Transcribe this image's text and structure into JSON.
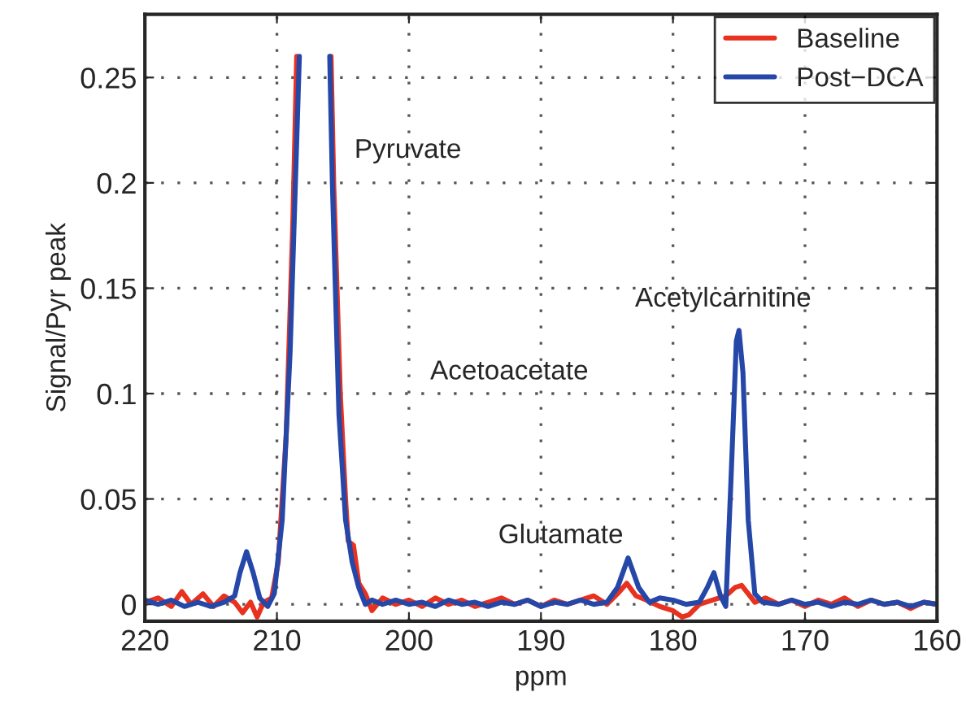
{
  "chart_data": {
    "type": "line",
    "xlabel": "ppm",
    "ylabel": "Signal/Pyr peak",
    "xlim": [
      220,
      160
    ],
    "xticks": [
      220,
      210,
      200,
      190,
      180,
      170,
      160
    ],
    "ylim": [
      -0.008,
      0.28
    ],
    "yticks": [
      0,
      0.05,
      0.1,
      0.15,
      0.2,
      0.25
    ],
    "grid": true,
    "legend": "top right",
    "line_style": "solid",
    "annotations": [
      "Pyruvate",
      "Acetoacetate",
      "Glutamate",
      "Acetylcarnitine"
    ],
    "series": [
      {
        "name": "Baseline",
        "color": "#e8311f",
        "x": [
          220,
          219,
          218,
          217.2,
          216.5,
          215.6,
          214.8,
          214,
          213.2,
          212.6,
          212,
          211.5,
          211,
          210.4,
          209.9,
          209.3,
          208.8,
          208.5,
          207.2,
          205.9,
          205.7,
          205.2,
          204.8,
          204.6,
          204.2,
          203.8,
          203.3,
          202.8,
          202,
          201,
          200,
          199,
          198,
          197,
          196,
          195,
          194,
          193,
          192,
          191,
          190,
          189,
          188,
          187,
          186,
          185,
          184.2,
          183.5,
          182.8,
          182,
          181,
          180,
          179.3,
          178.8,
          178,
          177,
          176,
          175.3,
          174.8,
          174.3,
          173.8,
          173,
          172,
          171,
          170,
          169,
          168,
          167,
          166,
          165,
          164,
          163,
          162,
          161,
          160
        ],
        "values": [
          0.001,
          0.003,
          -0.001,
          0.006,
          0.0,
          0.005,
          -0.001,
          0.004,
          0.001,
          -0.004,
          0.001,
          -0.006,
          0.001,
          0.003,
          0.02,
          0.08,
          0.18,
          0.26,
          null,
          0.26,
          0.2,
          0.1,
          0.05,
          0.03,
          0.028,
          0.01,
          0.005,
          -0.003,
          0.003,
          0.0,
          0.002,
          -0.001,
          0.003,
          0.0,
          0.002,
          -0.001,
          0.001,
          0.003,
          0.0,
          0.002,
          -0.001,
          0.002,
          0.0,
          0.002,
          0.004,
          0.0,
          0.005,
          0.01,
          0.004,
          0.002,
          -0.001,
          -0.003,
          -0.006,
          -0.005,
          0.0,
          0.002,
          0.004,
          0.008,
          0.009,
          0.005,
          0.001,
          0.003,
          0.0,
          0.002,
          -0.001,
          0.002,
          0.0,
          0.003,
          -0.001,
          0.002,
          0.0,
          0.001,
          -0.002,
          0.001,
          0.0
        ]
      },
      {
        "name": "Post−DCA",
        "color": "#2447a8",
        "x": [
          220,
          219,
          218,
          217,
          216,
          215,
          214,
          213.2,
          212.8,
          212.3,
          211.8,
          211.3,
          210.7,
          210.2,
          209.6,
          209,
          208.5,
          208.3,
          207.1,
          206.0,
          205.8,
          205.3,
          204.8,
          204.3,
          203.8,
          203.3,
          202.8,
          202,
          201,
          200,
          199,
          198,
          197,
          196,
          195,
          194,
          193,
          192,
          191,
          190,
          189,
          188,
          187,
          186,
          185,
          184.2,
          183.4,
          182.6,
          181.8,
          181,
          180,
          179,
          178,
          177.4,
          176.9,
          176.4,
          176,
          175.6,
          175.2,
          175.0,
          174.7,
          174.3,
          173.8,
          173.2,
          172,
          171,
          170,
          169,
          168,
          167,
          166,
          165,
          164,
          163,
          162,
          161,
          160
        ],
        "values": [
          0.002,
          0.0,
          0.002,
          -0.001,
          0.001,
          -0.001,
          0.001,
          0.004,
          0.015,
          0.025,
          0.015,
          0.003,
          -0.001,
          0.005,
          0.04,
          0.12,
          0.22,
          0.26,
          null,
          0.26,
          0.2,
          0.09,
          0.04,
          0.02,
          0.008,
          0.0,
          0.002,
          0.0,
          0.002,
          0.0,
          0.001,
          -0.001,
          0.002,
          0.0,
          0.001,
          -0.001,
          0.001,
          0.0,
          0.002,
          -0.001,
          0.001,
          0.0,
          0.002,
          0.0,
          0.001,
          0.008,
          0.022,
          0.008,
          0.001,
          0.003,
          0.002,
          0.0,
          0.001,
          0.008,
          0.015,
          0.004,
          -0.001,
          0.06,
          0.125,
          0.13,
          0.11,
          0.04,
          0.005,
          0.001,
          0.0,
          0.002,
          0.0,
          0.001,
          -0.001,
          0.001,
          0.0,
          0.002,
          0.0,
          0.001,
          -0.001,
          0.001,
          0.0
        ]
      }
    ]
  }
}
